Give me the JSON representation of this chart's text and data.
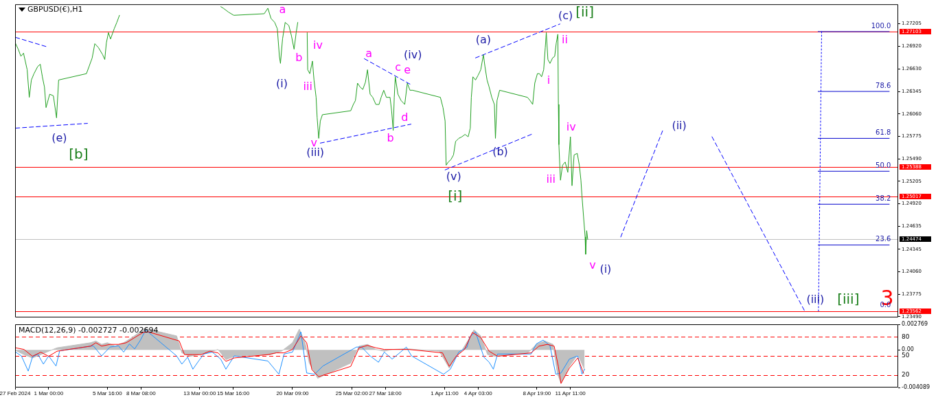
{
  "chart_data": [
    {
      "type": "line",
      "title": "GBPUSD(€),H1",
      "marker": "none",
      "tick_labels": "y",
      "xlim": [
        "2024-02-27T08:00",
        "2024-05-07T12:00"
      ],
      "ylim": [
        1.2348,
        1.2745
      ],
      "yticks": [
        1.27205,
        {
          "value": 1.2692,
          "label": "1.26920"
        },
        {
          "value": 1.2663,
          "label": "1.26630"
        },
        1.26345,
        {
          "value": 1.2606,
          "label": "1.26060"
        },
        1.25775,
        {
          "value": 1.2549,
          "label": "1.25490"
        },
        1.25205,
        {
          "value": 1.2492,
          "label": "1.24920"
        },
        1.24635,
        1.24345,
        {
          "value": 1.2406,
          "label": "1.24060"
        },
        1.23775,
        {
          "value": 1.2349,
          "label": "1.23490"
        }
      ],
      "series": [
        {
          "color": "#22a022",
          "line_style": "solid",
          "x": [
            "2024-02-27T09:00",
            "2024-02-27T14:00",
            "2024-02-27T19:00",
            "2024-02-28T00:00",
            "2024-02-28T07:00",
            "2024-02-28T11:00",
            "2024-02-28T15:00",
            "2024-02-28T20:00",
            "2024-02-29T03:00",
            "2024-02-29T08:00",
            "2024-02-29T12:00",
            "2024-02-29T16:00",
            "2024-02-29T19:00",
            "2024-03-01T02:00",
            "2024-03-01T09:00",
            "2024-03-01T15:00",
            "2024-03-01T19:00",
            "2024-03-04T00:00",
            "2024-03-04T05:00",
            "2024-03-04T11:00",
            "2024-03-04T16:00",
            "2024-03-04T23:00",
            "2024-03-05T07:00",
            "2024-03-05T11:00",
            "2024-03-05T14:00",
            "2024-03-05T18:00",
            "2024-03-05T22:00",
            "2024-03-06T05:00",
            "2024-03-06T10:00",
            "2024-03-06T15:00",
            "2024-03-06T18:00",
            "2024-03-06T23:00",
            "2024-03-07T06:00",
            "2024-03-07T11:00",
            "2024-03-11T22:00",
            "2024-03-14T16:00",
            "2024-03-14T21:00",
            "2024-03-15T07:00",
            "2024-03-15T17:00",
            "2024-03-18T03:00",
            "2024-03-18T10:00",
            "2024-03-18T16:00",
            "2024-03-18T23:00",
            "2024-03-19T04:00",
            "2024-03-19T08:00",
            "2024-03-19T10:00",
            "2024-03-19T14:00",
            "2024-03-19T19:00",
            "2024-03-20T02:00",
            "2024-03-20T07:00",
            "2024-03-20T12:00",
            "2024-03-20T16:00",
            "2024-03-20T19:00",
            "2024-03-20T20:00",
            "2024-03-21T12:00",
            "2024-03-21T13:00",
            "2024-03-21T14:00",
            "2024-03-21T18:00",
            "2024-03-21T23:00",
            "2024-03-22T02:00",
            "2024-03-22T06:00",
            "2024-03-22T08:00",
            "2024-03-22T11:00",
            "2024-03-22T14:00",
            "2024-03-22T18:00",
            "2024-03-25T00:00",
            "2024-03-25T05:00",
            "2024-03-25T09:00",
            "2024-03-25T13:00",
            "2024-03-25T18:00",
            "2024-03-25T23:00",
            "2024-03-26T04:00",
            "2024-03-26T08:00",
            "2024-03-26T13:00",
            "2024-03-26T18:00",
            "2024-03-27T00:00",
            "2024-03-27T06:00",
            "2024-03-27T10:00",
            "2024-03-27T15:00",
            "2024-03-27T20:00",
            "2024-03-28T03:00",
            "2024-03-28T06:00",
            "2024-03-28T09:00",
            "2024-03-28T11:00",
            "2024-03-28T13:00",
            "2024-03-28T18:00",
            "2024-03-29T00:00",
            "2024-03-29T07:00",
            "2024-03-29T12:00",
            "2024-03-29T17:00",
            "2024-03-29T22:00",
            "2024-04-01T03:00",
            "2024-04-01T08:00",
            "2024-04-01T12:00",
            "2024-04-01T14:00",
            "2024-04-01T18:00",
            "2024-04-01T23:00",
            "2024-04-02T04:00",
            "2024-04-02T08:00",
            "2024-04-02T14:00",
            "2024-04-02T20:00",
            "2024-04-03T02:00",
            "2024-04-03T08:00",
            "2024-04-03T12:00",
            "2024-04-03T14:00",
            "2024-04-03T17:00",
            "2024-04-03T22:00",
            "2024-04-04T03:00",
            "2024-04-04T08:00",
            "2024-04-04T13:00",
            "2024-04-04T16:00",
            "2024-04-04T20:00",
            "2024-04-05T00:00",
            "2024-04-05T05:00",
            "2024-04-05T10:00",
            "2024-04-05T12:00",
            "2024-04-05T15:00",
            "2024-04-05T20:00",
            "2024-04-08T01:00",
            "2024-04-08T06:00",
            "2024-04-08T11:00",
            "2024-04-08T15:00",
            "2024-04-08T20:00",
            "2024-04-09T00:00",
            "2024-04-09T04:00",
            "2024-04-09T08:00",
            "2024-04-09T11:00",
            "2024-04-09T13:00",
            "2024-04-09T16:00",
            "2024-04-09T20:00",
            "2024-04-10T01:00",
            "2024-04-10T05:00",
            "2024-04-10T08:00",
            "2024-04-10T11:00",
            "2024-04-10T12:00",
            "2024-04-10T13:00",
            "2024-04-10T16:00",
            "2024-04-10T20:00",
            "2024-04-11T01:00",
            "2024-04-11T06:00",
            "2024-04-11T11:00",
            "2024-04-11T14:00",
            "2024-04-11T18:00",
            "2024-04-12T00:00",
            "2024-04-12T04:00",
            "2024-04-12T07:00",
            "2024-04-12T09:00",
            "2024-04-12T12:00",
            "2024-04-12T15:00",
            "2024-04-12T16:00",
            "2024-04-12T18:00",
            "2024-04-12T20:00"
          ],
          "values": [
            1.2695,
            1.2688,
            1.2679,
            1.2683,
            1.2662,
            1.2627,
            1.2649,
            1.2657,
            1.2666,
            1.2669,
            1.2653,
            1.264,
            1.2614,
            1.2631,
            1.2629,
            1.2601,
            1.2649,
            1.2657,
            1.2666,
            1.2677,
            1.2695,
            1.269,
            1.2681,
            1.2675,
            1.2696,
            1.2709,
            1.2701,
            1.2714,
            1.2722,
            1.2731,
            null,
            null,
            null,
            null,
            null,
            1.2742,
            1.274,
            1.2735,
            1.2731,
            1.2733,
            1.274,
            1.2727,
            1.2722,
            1.2714,
            1.2679,
            1.267,
            1.2701,
            1.2722,
            1.2718,
            1.2705,
            1.2688,
            1.2709,
            1.2722,
            null,
            null,
            1.2709,
            1.2662,
            1.2657,
            1.2673,
            1.2649,
            1.2627,
            1.2601,
            1.2575,
            1.2597,
            1.2605,
            1.261,
            1.2618,
            1.2623,
            1.2645,
            1.264,
            1.2637,
            1.2646,
            1.2662,
            1.2631,
            1.2627,
            1.2618,
            1.2618,
            1.2627,
            1.2636,
            1.2627,
            1.2627,
            1.261,
            1.2585,
            1.2627,
            1.2653,
            1.2631,
            1.2623,
            1.2618,
            1.2645,
            1.2636,
            1.2636,
            1.2627,
            1.2614,
            1.2597,
            1.2541,
            1.2545,
            1.2548,
            1.2554,
            1.2571,
            1.2575,
            1.2577,
            1.258,
            1.2577,
            1.2588,
            1.2627,
            1.2653,
            1.2649,
            1.2655,
            1.2662,
            1.2681,
            1.2666,
            1.2649,
            1.264,
            1.2627,
            1.2618,
            1.2575,
            1.2623,
            1.2636,
            1.2627,
            1.2623,
            1.2618,
            1.2645,
            1.2657,
            1.2657,
            1.2653,
            1.2662,
            1.269,
            1.2709,
            1.2675,
            1.267,
            1.2677,
            1.2679,
            1.2696,
            1.2707,
            1.2618,
            1.2567,
            1.2522,
            1.2541,
            1.2545,
            1.2532,
            1.2577,
            1.2515,
            1.2554,
            1.2556,
            1.2541,
            1.2522,
            1.2502,
            1.2476,
            1.245,
            1.2428,
            1.2458,
            1.2447
          ]
        },
        {
          "color": "#0000ff",
          "line_style": "dashed",
          "x": [
            "2024-02-27T09:00",
            "2024-02-29T21:00"
          ],
          "values": [
            1.2703,
            1.2691
          ]
        },
        {
          "color": "#0000ff",
          "line_style": "dashed",
          "x": [
            "2024-02-27T09:00",
            "2024-03-04T02:00"
          ],
          "values": [
            1.2588,
            1.2594
          ]
        },
        {
          "color": "#0000ff",
          "line_style": "dashed",
          "x": [
            "2024-03-22T14:00",
            "2024-03-29T19:00"
          ],
          "values": [
            1.2569,
            1.2593
          ]
        },
        {
          "color": "#0000ff",
          "line_style": "dashed",
          "x": [
            "2024-03-26T02:00",
            "2024-03-29T19:00"
          ],
          "values": [
            1.2676,
            1.2643
          ]
        },
        {
          "color": "#0000ff",
          "line_style": "dashed",
          "x": [
            "2024-04-01T12:00",
            "2024-04-08T12:00"
          ],
          "values": [
            1.2535,
            1.2581
          ]
        },
        {
          "color": "#0000ff",
          "line_style": "dashed",
          "x": [
            "2024-04-03T22:00",
            "2024-04-10T15:00"
          ],
          "values": [
            1.2677,
            1.272
          ]
        },
        {
          "color": "#0000ff",
          "line_style": "dashed",
          "x": [
            "2024-04-15T11:00",
            "2024-04-18T19:00",
            "2024-04-19T18:00",
            "2024-04-22T17:00",
            "2024-04-30T01:00"
          ],
          "values": [
            1.245,
            1.2585,
            null,
            1.2577,
            1.2357
          ]
        },
        {
          "color": "#0000ff",
          "line_style": "dotted",
          "x": [
            "2024-05-01T10:00",
            "2024-05-01T04:00"
          ],
          "values": [
            1.27103,
            1.23562
          ]
        },
        {
          "color": "#0000cc",
          "line_style": "solid",
          "x": [
            "2024-05-01T03:00",
            "2024-05-06T19:00"
          ],
          "values": [
            1.27103,
            1.27103
          ]
        },
        {
          "color": "#0000cc",
          "line_style": "solid",
          "x": [
            "2024-05-01T03:00",
            "2024-05-06T19:00"
          ],
          "values": [
            1.26345,
            1.26345
          ]
        },
        {
          "color": "#0000cc",
          "line_style": "solid",
          "x": [
            "2024-05-01T03:00",
            "2024-05-06T19:00"
          ],
          "values": [
            1.2575,
            1.2575
          ]
        },
        {
          "color": "#0000cc",
          "line_style": "solid",
          "x": [
            "2024-05-01T03:00",
            "2024-05-06T19:00"
          ],
          "values": [
            1.25333,
            1.25333
          ]
        },
        {
          "color": "#0000cc",
          "line_style": "solid",
          "x": [
            "2024-05-01T03:00",
            "2024-05-06T19:00"
          ],
          "values": [
            1.24915,
            1.24915
          ]
        },
        {
          "color": "#0000cc",
          "line_style": "solid",
          "x": [
            "2024-05-01T03:00",
            "2024-05-06T19:00"
          ],
          "values": [
            1.24398,
            1.24398
          ]
        }
      ],
      "ref_lines": [
        {
          "axis": "y",
          "value": 1.27103,
          "label": "1.27103",
          "color": "#ff0000"
        },
        {
          "axis": "y",
          "value": 1.25388,
          "label": "1.25388",
          "color": "#ff0000"
        },
        {
          "axis": "y",
          "value": 1.25017,
          "label": "1.25017",
          "color": "#ff0000"
        },
        {
          "axis": "y",
          "value": 1.24474,
          "label": "1.24474",
          "color": "#c0c0c0"
        },
        {
          "axis": "y",
          "value": 1.23562,
          "label": "1.23562",
          "color": "#ff0000"
        }
      ],
      "annotations": [
        {
          "text": "(e)",
          "x": "2024-03-01T15:00",
          "y": 1.2601
        },
        {
          "text": "[b]",
          "x": "2024-03-01T15:00",
          "y": 1.2601
        },
        {
          "text": "a",
          "x": "2024-03-19T19:00",
          "y": 1.2722
        },
        {
          "text": "b",
          "x": "2024-03-20T12:00",
          "y": 1.2688
        },
        {
          "text": "(i)",
          "x": "2024-03-19T10:00",
          "y": 1.267
        },
        {
          "text": "iii",
          "x": "2024-03-21T18:00",
          "y": 1.2657
        },
        {
          "text": "iv",
          "x": "2024-03-21T23:00",
          "y": 1.2673
        },
        {
          "text": "v",
          "x": "2024-03-22T11:00",
          "y": 1.2575
        },
        {
          "text": "(iii)",
          "x": "2024-03-22T11:00",
          "y": 1.2575
        },
        {
          "text": "a",
          "x": "2024-03-26T08:00",
          "y": 1.2662
        },
        {
          "text": "c",
          "x": "2024-03-28T13:00",
          "y": 1.2653
        },
        {
          "text": "e",
          "x": "2024-03-29T12:00",
          "y": 1.2645
        },
        {
          "text": "(iv)",
          "x": "2024-03-29T12:00",
          "y": 1.2645
        },
        {
          "text": "b",
          "x": "2024-03-28T09:00",
          "y": 1.2585
        },
        {
          "text": "d",
          "x": "2024-03-29T07:00",
          "y": 1.2618
        },
        {
          "text": "(v)",
          "x": "2024-04-01T14:00",
          "y": 1.2541
        },
        {
          "text": "[i]",
          "x": "2024-04-01T14:00",
          "y": 1.2541
        },
        {
          "text": "(a)",
          "x": "2024-04-04T13:00",
          "y": 1.2681
        },
        {
          "text": "(b)",
          "x": "2024-04-05T12:00",
          "y": 1.2575
        },
        {
          "text": "(c)",
          "x": "2024-04-09T13:00",
          "y": 1.2709
        },
        {
          "text": "[ii]",
          "x": "2024-04-09T13:00",
          "y": 1.2709
        },
        {
          "text": "ii",
          "x": "2024-04-10T11:00",
          "y": 1.2707
        },
        {
          "text": "i",
          "x": "2024-04-09T16:00",
          "y": 1.2675
        },
        {
          "text": "iv",
          "x": "2024-04-11T11:00",
          "y": 1.2577
        },
        {
          "text": "iii",
          "x": "2024-04-10T16:00",
          "y": 1.2522
        },
        {
          "text": "v",
          "x": "2024-04-12T16:00",
          "y": 1.2428
        },
        {
          "text": "(i)",
          "x": "2024-04-12T16:00",
          "y": 1.2428
        },
        {
          "text": "(ii)",
          "x": "2024-04-18T19:00",
          "y": 1.2585
        },
        {
          "text": "(iii)",
          "x": "2024-04-30T01:00",
          "y": 1.2357
        },
        {
          "text": "[iii]",
          "x": "2024-04-30T01:00",
          "y": 1.2357
        },
        "3",
        {
          "text": "100.0",
          "x": "2024-05-06T22:00",
          "y": 1.27103
        },
        {
          "text": "78.6",
          "x": "2024-05-06T22:00",
          "y": 1.26345
        },
        {
          "text": "61.8",
          "x": "2024-05-06T22:00",
          "y": 1.2575
        },
        {
          "text": "50.0",
          "x": "2024-05-06T22:00",
          "y": 1.25333
        },
        {
          "text": "38.2",
          "x": "2024-05-06T22:00",
          "y": 1.24915
        },
        {
          "text": "23.6",
          "x": "2024-05-06T22:00",
          "y": 1.24398
        },
        {
          "text": "0.0",
          "x": "2024-05-06T22:00",
          "y": 1.23562
        }
      ]
    },
    {
      "type": "line",
      "title": "MACD(12,26,9) -0.002727 -0.002694",
      "marker": "none",
      "xlim": [
        "2024-02-27T08:00",
        "2024-05-07T12:00"
      ],
      "xticks": [
        {
          "value": "2024-02-27T08:00",
          "label": "27 Feb 2024"
        },
        {
          "value": "2024-03-01T00:00",
          "label": "1 Mar 00:00"
        },
        {
          "value": "2024-03-05T16:00",
          "label": "5 Mar 16:00"
        },
        {
          "value": "2024-03-08T08:00",
          "label": "8 Mar 08:00"
        },
        {
          "value": "2024-03-13T00:00",
          "label": "13 Mar 00:00"
        },
        {
          "value": "2024-03-15T16:00",
          "label": "15 Mar 16:00"
        },
        {
          "value": "2024-03-20T09:00",
          "label": "20 Mar 09:00"
        },
        {
          "value": "2024-03-25T02:00",
          "label": "25 Mar 02:00"
        },
        {
          "value": "2024-03-27T18:00",
          "label": "27 Mar 18:00"
        },
        {
          "value": "2024-04-01T11:00",
          "label": "1 Apr 11:00"
        },
        {
          "value": "2024-04-04T03:00",
          "label": "4 Apr 03:00"
        },
        {
          "value": "2024-04-08T19:00",
          "label": "8 Apr 19:00"
        },
        {
          "value": "2024-04-11T11:00",
          "label": "11 Apr 11:00"
        }
      ],
      "ylim": [
        -0.004089,
        0.002769
      ],
      "yticks": [
        0.002769,
        {
          "value": 0,
          "label": "0.00"
        },
        -0.004089
      ],
      "y2lim": [
        0,
        100
      ],
      "y2ticks": [
        20,
        50,
        80
      ],
      "series": [
        {
          "type": "area",
          "color": "#c0c0c0",
          "x": [
            "2024-02-27T09:00",
            "2024-02-28T01:00",
            "2024-02-28T17:00",
            "2024-02-29T09:00",
            "2024-03-01T00:00",
            "2024-03-01T16:00",
            "2024-03-04T08:00",
            "2024-03-04T18:00",
            "2024-03-05T05:00",
            "2024-03-05T16:00",
            "2024-03-06T07:00",
            "2024-03-06T23:00",
            "2024-03-07T15:00",
            "2024-03-08T15:00",
            "2024-03-11T04:00",
            "2024-03-11T14:00",
            "2024-03-12T06:00",
            "2024-03-12T22:00",
            "2024-03-13T14:00",
            "2024-03-14T11:00",
            "2024-03-15T02:00",
            "2024-03-15T18:00",
            "2024-03-18T15:00",
            "2024-03-19T12:00",
            "2024-03-20T09:00",
            "2024-03-20T22:00",
            "2024-03-21T09:00",
            "2024-03-21T17:00",
            "2024-03-22T09:00",
            "2024-03-25T00:00",
            "2024-03-25T16:00",
            "2024-03-26T08:00",
            "2024-03-27T00:00",
            "2024-03-27T16:00",
            "2024-03-28T07:00",
            "2024-03-29T10:00",
            "2024-04-01T01:00",
            "2024-04-01T20:00",
            "2024-04-02T09:00",
            "2024-04-02T19:00",
            "2024-04-03T11:00",
            "2024-04-03T19:00",
            "2024-04-04T08:00",
            "2024-04-04T21:00",
            "2024-04-05T11:00",
            "2024-04-08T02:00",
            "2024-04-08T18:00",
            "2024-04-09T10:00",
            "2024-04-10T02:00",
            "2024-04-10T10:00",
            "2024-04-10T17:00",
            "2024-04-11T09:00",
            "2024-04-12T01:00",
            "2024-04-12T14:00"
          ],
          "values": [
            -7e-05,
            -0.00052,
            -0.00088,
            -0.00052,
            -0.00015,
            0.00022,
            0.00077,
            0.00096,
            0.00059,
            0.00077,
            0.0004,
            0.00077,
            0.00133,
            0.00232,
            0.00151,
            -0.00033,
            -0.0007,
            -0.00052,
            -0.00033,
            4e-05,
            -0.00107,
            -0.0007,
            -0.00052,
            -0.00015,
            0.00077,
            0.00225,
            0.00077,
            -0.00144,
            -0.00309,
            -0.00144,
            0.0004,
            0.00059,
            4e-05,
            -0.00015,
            4e-05,
            0.00011,
            -0.00015,
            -0.00199,
            -0.0007,
            -0.00015,
            0.00133,
            0.00217,
            0.00151,
            -0.00052,
            -0.0007,
            -0.00033,
            0.00059,
            0.00096,
            0.00059,
            -0.00254,
            -0.00365,
            -0.0018,
            -0.00052,
            -0.00217
          ]
        },
        {
          "type": "line",
          "color": "#ff0000",
          "x": [
            "2024-02-27T09:00",
            "2024-02-28T01:00",
            "2024-02-28T17:00",
            "2024-02-29T09:00",
            "2024-03-01T00:00",
            "2024-03-01T16:00",
            "2024-03-04T08:00",
            "2024-03-04T18:00",
            "2024-03-05T05:00",
            "2024-03-05T21:00",
            "2024-03-06T13:00",
            "2024-03-07T04:00",
            "2024-03-07T20:00",
            "2024-03-08T12:00",
            "2024-03-08T22:00",
            "2024-03-11T09:00",
            "2024-03-11T19:00",
            "2024-03-12T11:00",
            "2024-03-13T03:00",
            "2024-03-13T19:00",
            "2024-03-14T11:00",
            "2024-03-15T02:00",
            "2024-03-15T18:00",
            "2024-03-18T10:00",
            "2024-03-19T02:00",
            "2024-03-19T17:00",
            "2024-03-20T09:00",
            "2024-03-21T01:00",
            "2024-03-21T12:00",
            "2024-03-21T22:00",
            "2024-03-22T11:00",
            "2024-03-25T00:00",
            "2024-03-25T16:00",
            "2024-03-26T08:00",
            "2024-03-27T00:00",
            "2024-03-27T16:00",
            "2024-03-28T23:00",
            "2024-03-29T15:00",
            "2024-04-01T07:00",
            "2024-04-01T20:00",
            "2024-04-02T09:00",
            "2024-04-03T01:00",
            "2024-04-03T16:00",
            "2024-04-04T08:00",
            "2024-04-05T00:00",
            "2024-04-05T16:00",
            "2024-04-08T08:00",
            "2024-04-08T23:00",
            "2024-04-09T15:00",
            "2024-04-10T04:00",
            "2024-04-10T12:00",
            "2024-04-10T17:00",
            "2024-04-11T09:00",
            "2024-04-12T01:00",
            "2024-04-12T12:00"
          ],
          "values": [
            0.00022,
            4e-05,
            -0.0007,
            -0.00026,
            -0.0007,
            -0.00015,
            0.0004,
            0.00077,
            0.0004,
            0.00059,
            0.00059,
            0.00077,
            0.00133,
            0.00188,
            0.00195,
            0.00096,
            -0.00052,
            -0.00052,
            -0.00052,
            -0.00015,
            -0.00033,
            -0.00125,
            -0.00088,
            -0.00052,
            -0.00033,
            -0.00033,
            4e-05,
            0.00151,
            0.00077,
            -0.00217,
            -0.00291,
            -0.0018,
            0.00022,
            0.00048,
            0.00022,
            4e-05,
            4e-05,
            4e-05,
            -0.00033,
            -0.0018,
            -0.0007,
            4e-05,
            0.00188,
            0.00133,
            -0.00015,
            -0.0007,
            -0.00033,
            0.0004,
            0.00059,
            0.0004,
            -0.0018,
            -0.00365,
            -0.00199,
            -0.00088,
            -0.00254
          ]
        },
        {
          "type": "line",
          "color": "#1e90ff",
          "axis": "y2",
          "x": [
            "2024-02-27T09:00",
            "2024-02-27T20:00",
            "2024-02-28T09:00",
            "2024-02-28T17:00",
            "2024-02-29T03:00",
            "2024-02-29T14:00",
            "2024-03-01T00:00",
            "2024-03-01T14:00",
            "2024-03-01T21:00",
            "2024-03-04T13:00",
            "2024-03-05T05:00",
            "2024-03-05T21:00",
            "2024-03-06T13:00",
            "2024-03-06T23:00",
            "2024-03-07T10:00",
            "2024-03-07T20:00",
            "2024-03-08T07:00",
            "2024-03-08T17:00",
            "2024-03-11T04:00",
            "2024-03-11T14:00",
            "2024-03-12T01:00",
            "2024-03-12T11:00",
            "2024-03-12T22:00",
            "2024-03-13T08:00",
            "2024-03-14T00:00",
            "2024-03-14T16:00",
            "2024-03-15T02:00",
            "2024-03-15T18:00",
            "2024-03-18T10:00",
            "2024-03-19T07:00",
            "2024-03-19T17:00",
            "2024-03-20T09:00",
            "2024-03-21T01:00",
            "2024-03-21T12:00",
            "2024-03-22T03:00",
            "2024-03-22T19:00",
            "2024-03-25T11:00",
            "2024-03-25T21:00",
            "2024-03-26T13:00",
            "2024-03-27T05:00",
            "2024-03-27T16:00",
            "2024-03-28T07:00",
            "2024-03-28T23:00",
            "2024-03-29T10:00",
            "2024-03-29T20:00",
            "2024-04-01T09:00",
            "2024-04-01T22:00",
            "2024-04-02T14:00",
            "2024-04-03T06:00",
            "2024-04-03T11:00",
            "2024-04-03T22:00",
            "2024-04-04T14:00",
            "2024-04-05T00:00",
            "2024-04-05T08:00",
            "2024-04-05T16:00",
            "2024-04-08T08:00",
            "2024-04-08T18:00",
            "2024-04-09T07:00",
            "2024-04-09T20:00",
            "2024-04-10T07:00",
            "2024-04-10T17:00",
            "2024-04-11T09:00",
            "2024-04-12T01:00",
            "2024-04-12T09:00",
            "2024-04-12T14:00"
          ],
          "values": [
            56,
            50,
            26,
            48,
            53,
            37,
            50,
            34,
            58,
            66,
            50,
            64,
            66,
            56,
            69,
            61,
            75,
            91,
            50,
            37,
            48,
            29,
            42,
            53,
            56,
            45,
            29,
            50,
            42,
            21,
            53,
            56,
            88,
            23,
            21,
            34,
            64,
            64,
            50,
            40,
            56,
            45,
            56,
            64,
            50,
            21,
            29,
            56,
            64,
            80,
            88,
            48,
            40,
            29,
            53,
            53,
            69,
            75,
            66,
            21,
            23,
            45,
            50,
            21,
            29
          ]
        }
      ],
      "ref_lines": [
        {
          "axis": "y2",
          "value": 80,
          "color": "#ff0000",
          "line_style": "dashed"
        },
        {
          "axis": "y2",
          "value": 50,
          "color": "#ff0000",
          "line_style": "dashed"
        },
        {
          "axis": "y2",
          "value": 20,
          "color": "#ff0000",
          "line_style": "dashed"
        }
      ]
    }
  ]
}
